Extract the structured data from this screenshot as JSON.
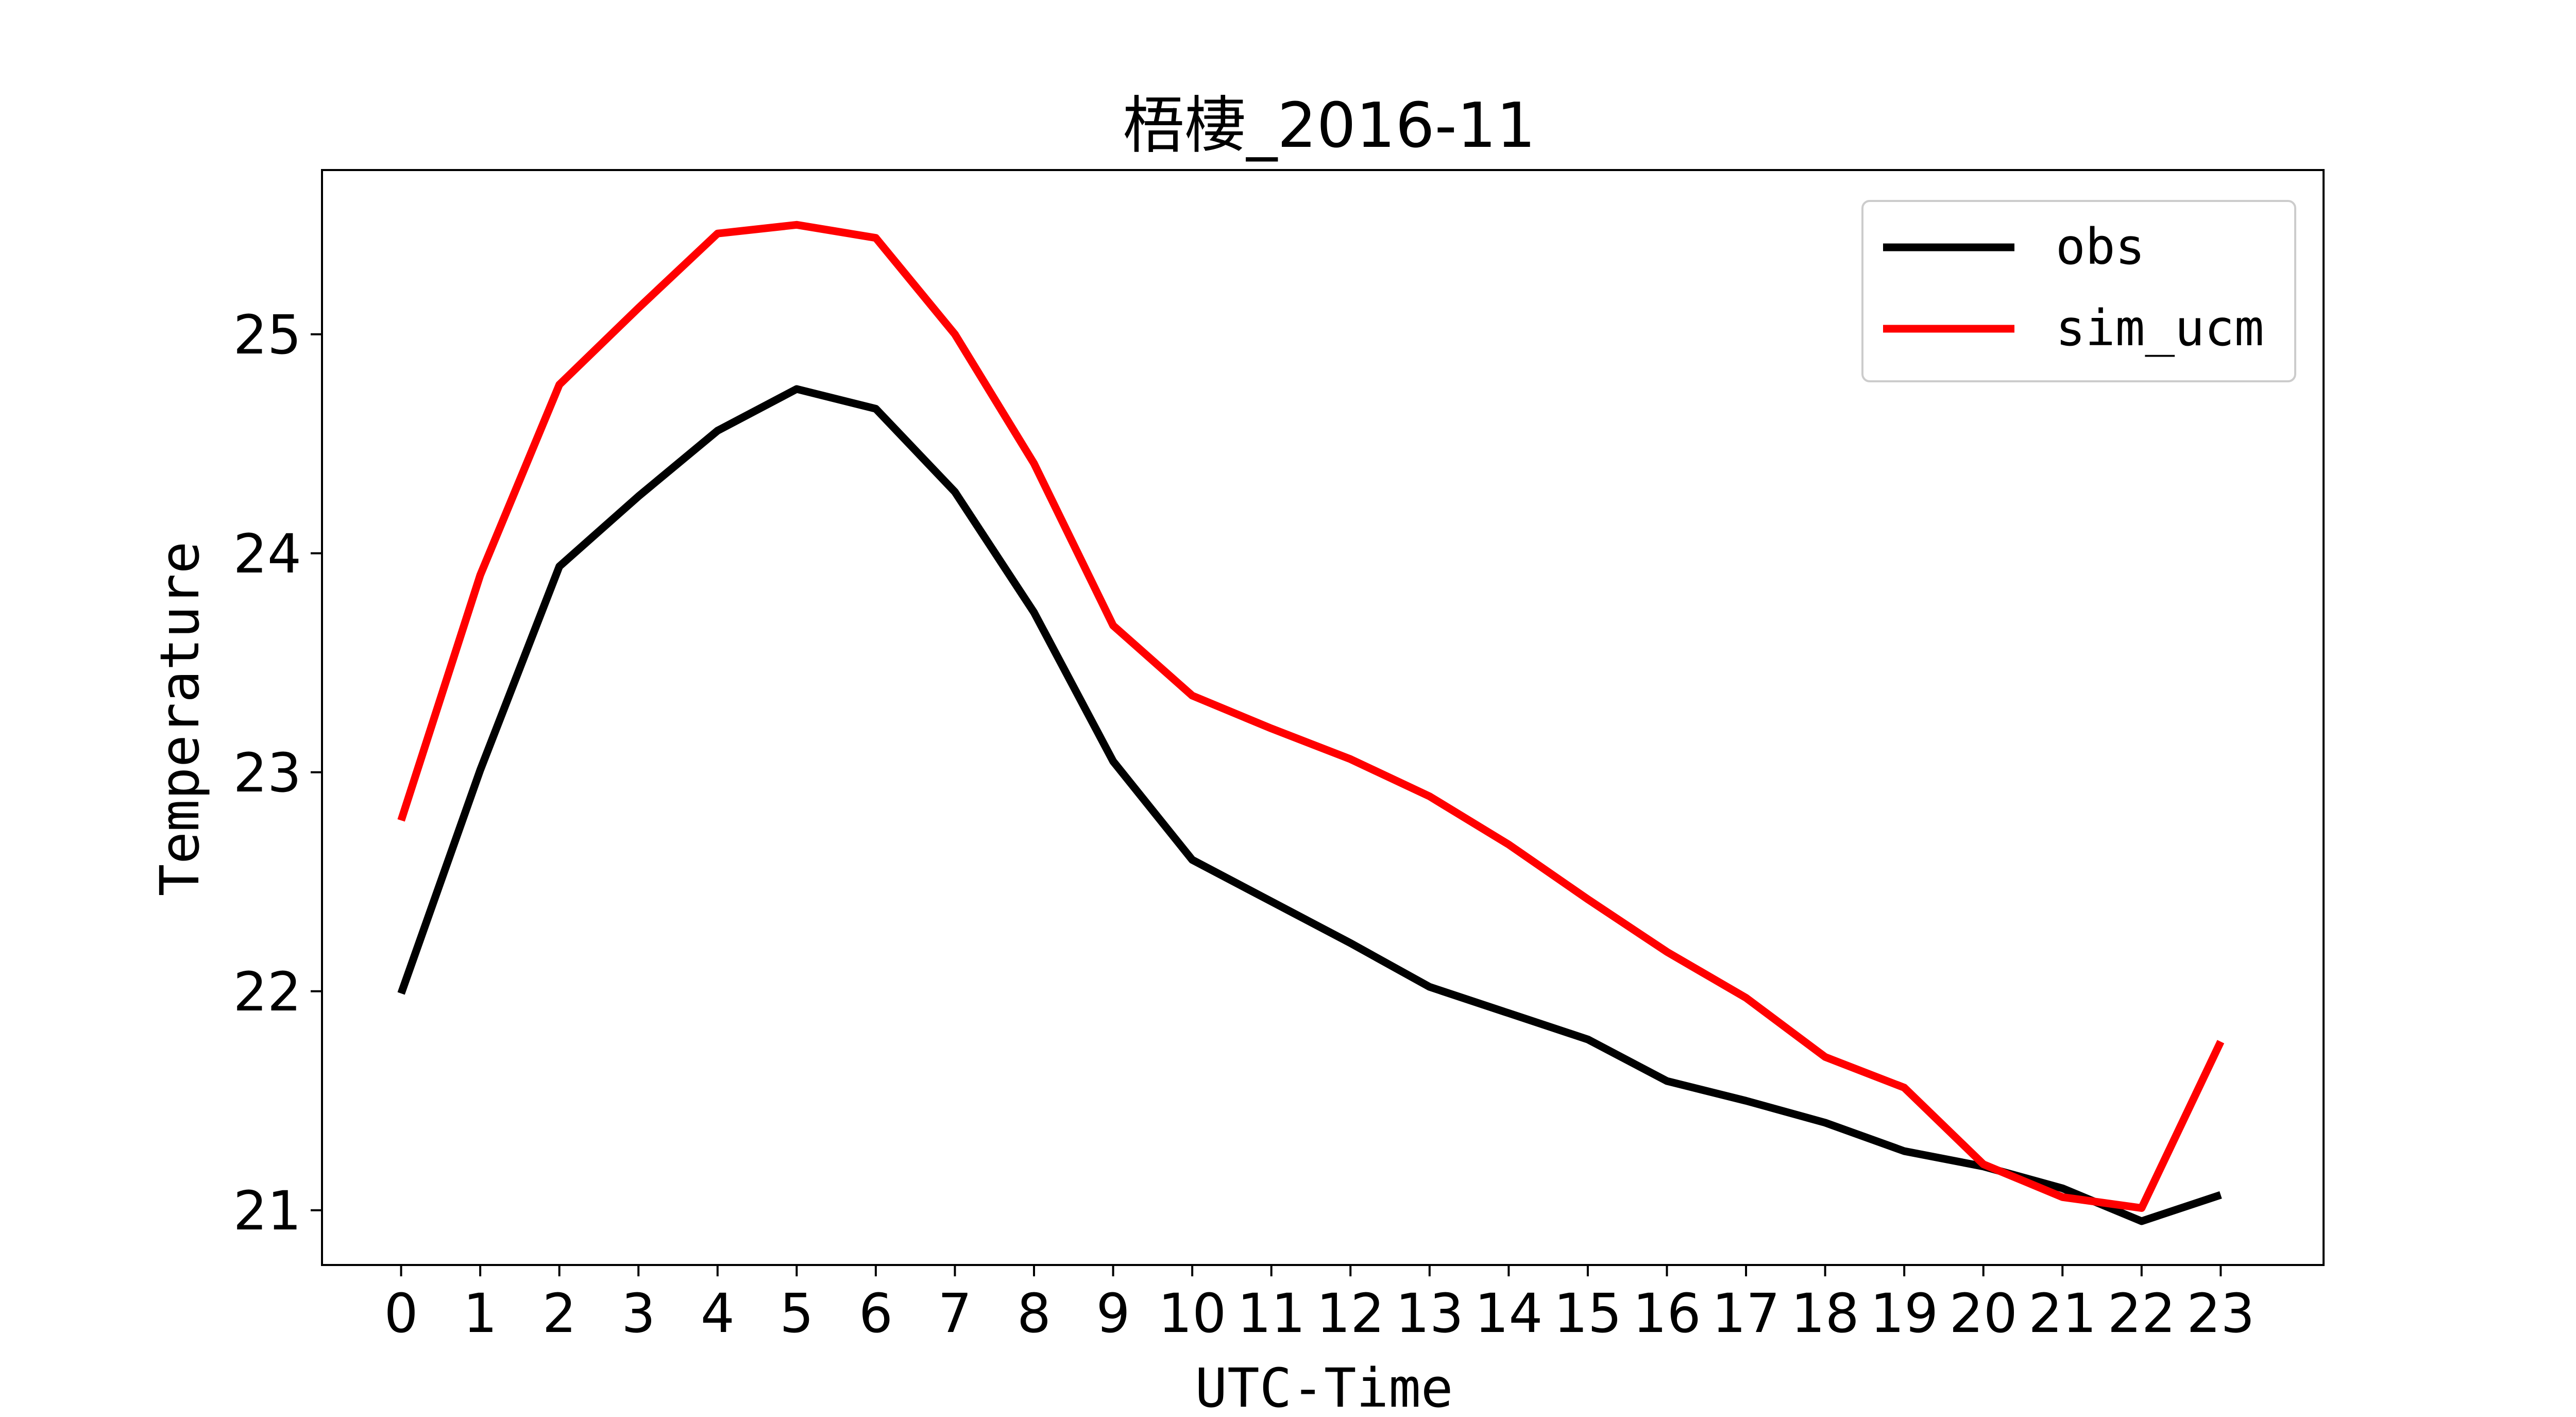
{
  "chart_data": {
    "type": "line",
    "title": "梧棲_2016-11",
    "xlabel": "UTC-Time",
    "ylabel": "Temperature",
    "x": [
      0,
      1,
      2,
      3,
      4,
      5,
      6,
      7,
      8,
      9,
      10,
      11,
      12,
      13,
      14,
      15,
      16,
      17,
      18,
      19,
      20,
      21,
      22,
      23
    ],
    "xlim": [
      -1,
      24.3
    ],
    "ylim": [
      20.75,
      25.75
    ],
    "yticks": [
      21,
      22,
      23,
      24,
      25
    ],
    "grid": false,
    "legend_position": "top-right",
    "series": [
      {
        "name": "obs",
        "color": "#000000",
        "values": [
          21.99,
          23.01,
          23.94,
          24.26,
          24.56,
          24.75,
          24.66,
          24.28,
          23.73,
          23.05,
          22.6,
          22.41,
          22.22,
          22.02,
          21.9,
          21.78,
          21.59,
          21.5,
          21.4,
          21.27,
          21.2,
          21.1,
          20.95,
          21.07
        ]
      },
      {
        "name": "sim_ucm",
        "color": "#ff0000",
        "values": [
          22.78,
          23.9,
          24.77,
          25.12,
          25.46,
          25.5,
          25.44,
          25.0,
          24.41,
          23.67,
          23.35,
          23.2,
          23.06,
          22.89,
          22.67,
          22.42,
          22.18,
          21.97,
          21.7,
          21.56,
          21.21,
          21.06,
          21.01,
          21.77
        ]
      }
    ]
  }
}
